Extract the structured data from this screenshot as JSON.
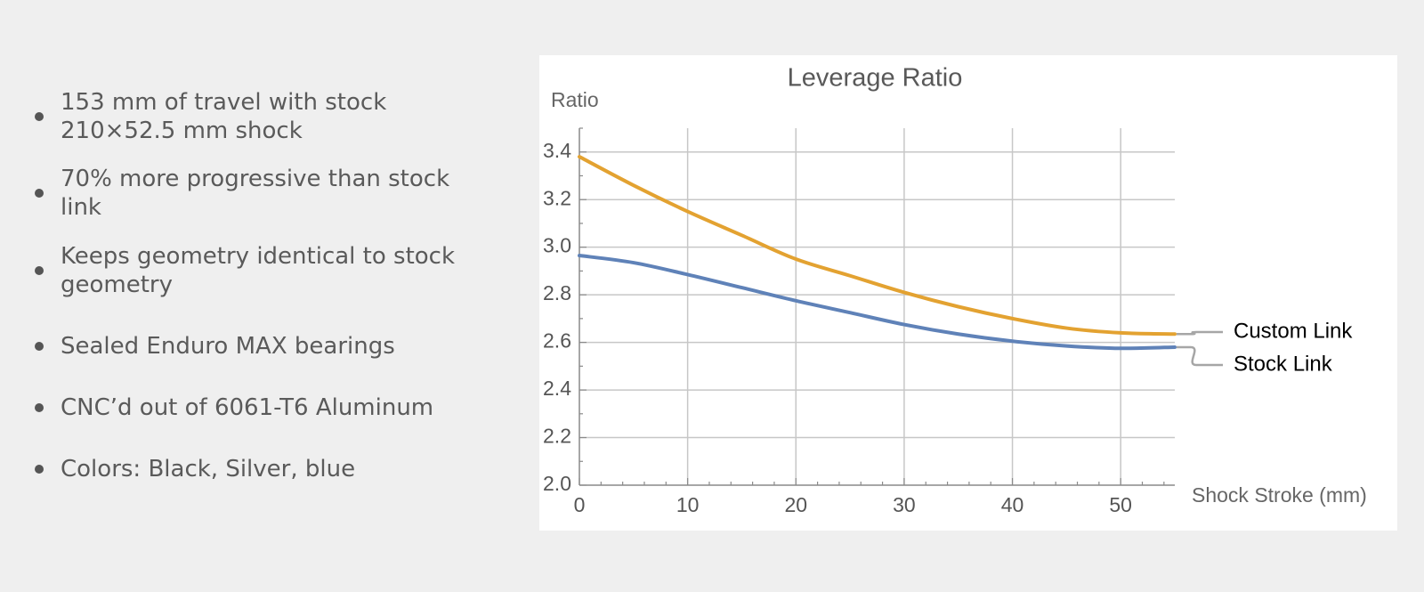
{
  "features": [
    {
      "text": "153 mm of travel with stock 210×52.5 mm shock"
    },
    {
      "text": "70% more progressive than stock link"
    },
    {
      "text": "Keeps geometry identical to stock geometry"
    },
    {
      "text": "Sealed Enduro MAX bearings"
    },
    {
      "text": "CNC’d out of 6061-T6 Aluminum"
    },
    {
      "text": "Colors: Black, Silver, blue"
    }
  ],
  "colors": {
    "background": "#efefef",
    "custom_link": "#e3a231",
    "stock_link": "#5f82b8",
    "legend_connector": "#a6a6a6",
    "grid": "#c7c7c7"
  },
  "chart_data": {
    "type": "line",
    "title": "Leverage Ratio",
    "xlabel": "Shock Stroke (mm)",
    "ylabel": "Ratio",
    "xlim": [
      0,
      55
    ],
    "ylim": [
      2.0,
      3.5
    ],
    "x_ticks": [
      0,
      10,
      20,
      30,
      40,
      50
    ],
    "y_ticks": [
      2.0,
      2.2,
      2.4,
      2.6,
      2.8,
      3.0,
      3.2,
      3.4
    ],
    "x_tick_labels": [
      "0",
      "10",
      "20",
      "30",
      "40",
      "50"
    ],
    "y_tick_labels": [
      "2.0",
      "2.2",
      "2.4",
      "2.6",
      "2.8",
      "3.0",
      "3.2",
      "3.4"
    ],
    "grid": true,
    "legend_position": "right",
    "series": [
      {
        "name": "Custom Link",
        "color": "#e3a231",
        "x": [
          0,
          5,
          10,
          15,
          20,
          25,
          30,
          35,
          40,
          45,
          50,
          55
        ],
        "y": [
          3.38,
          3.26,
          3.15,
          3.05,
          2.95,
          2.88,
          2.81,
          2.75,
          2.7,
          2.66,
          2.64,
          2.635
        ]
      },
      {
        "name": "Stock Link",
        "color": "#5f82b8",
        "x": [
          0,
          5,
          10,
          15,
          20,
          25,
          30,
          35,
          40,
          45,
          50,
          55
        ],
        "y": [
          2.965,
          2.935,
          2.885,
          2.83,
          2.775,
          2.725,
          2.675,
          2.635,
          2.605,
          2.585,
          2.575,
          2.58
        ]
      }
    ]
  }
}
